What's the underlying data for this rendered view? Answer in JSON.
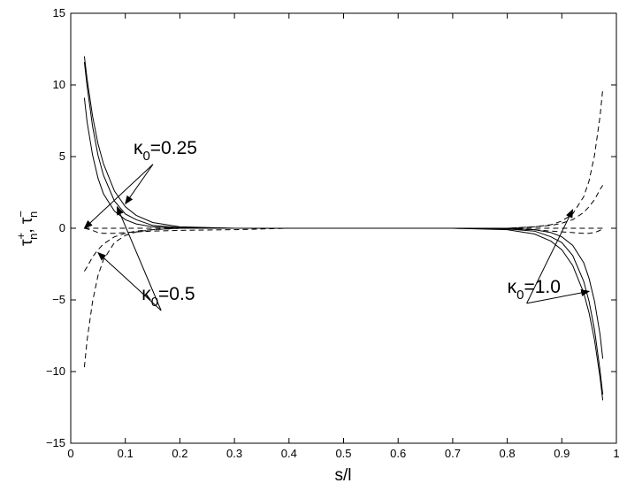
{
  "chart_data": {
    "type": "line",
    "title": "",
    "xlabel": "s/l",
    "ylabel": {
      "base": "τ",
      "parts": [
        {
          "sup": "+",
          "sub": "n"
        },
        {
          "sep": ", "
        },
        {
          "sup": "−",
          "sub": "n"
        }
      ]
    },
    "xlim": [
      0,
      1
    ],
    "ylim": [
      -15,
      15
    ],
    "xticks": [
      "0",
      "0.1",
      "0.2",
      "0.3",
      "0.4",
      "0.5",
      "0.6",
      "0.7",
      "0.8",
      "0.9",
      "1"
    ],
    "yticks": [
      "15",
      "10",
      "5",
      "0",
      "−5",
      "−10",
      "−15"
    ],
    "grid": false,
    "legend": "none",
    "x": [
      0.025,
      0.03,
      0.04,
      0.05,
      0.06,
      0.08,
      0.1,
      0.12,
      0.15,
      0.2,
      0.3,
      0.4,
      0.5,
      0.6,
      0.7,
      0.8,
      0.85,
      0.88,
      0.9,
      0.92,
      0.94,
      0.95,
      0.96,
      0.97,
      0.975
    ],
    "series": [
      {
        "style": "solid",
        "color": "#000000",
        "values": [
          12.0,
          10.4,
          7.8,
          5.9,
          4.5,
          2.6,
          1.5,
          0.9,
          0.4,
          0.1,
          0.0,
          0.0,
          0.0,
          0.0,
          0.0,
          -0.1,
          -0.4,
          -0.9,
          -1.5,
          -2.6,
          -4.5,
          -5.9,
          -7.8,
          -10.4,
          -12.0
        ]
      },
      {
        "style": "solid",
        "color": "#000000",
        "values": [
          11.6,
          9.9,
          7.1,
          5.1,
          3.7,
          1.9,
          1.0,
          0.6,
          0.2,
          0.05,
          0.0,
          0.0,
          0.0,
          0.0,
          0.0,
          -0.05,
          -0.2,
          -0.6,
          -1.0,
          -1.9,
          -3.7,
          -5.1,
          -7.1,
          -9.9,
          -11.6
        ]
      },
      {
        "style": "solid",
        "color": "#000000",
        "values": [
          9.1,
          7.4,
          5.1,
          3.5,
          2.4,
          1.2,
          0.6,
          0.3,
          0.1,
          0.0,
          0.0,
          0.0,
          0.0,
          0.0,
          0.0,
          0.0,
          -0.1,
          -0.3,
          -0.6,
          -1.2,
          -2.4,
          -3.5,
          -5.1,
          -7.4,
          -9.1
        ]
      },
      {
        "style": "dashed",
        "color": "#000000",
        "values": [
          0.0,
          0.0,
          0.0,
          0.0,
          0.0,
          0.0,
          0.0,
          0.0,
          0.0,
          0.0,
          0.0,
          0.0,
          0.0,
          0.0,
          0.0,
          0.0,
          0.0,
          0.0,
          0.0,
          0.0,
          0.0,
          0.0,
          0.0,
          0.0,
          0.0
        ]
      },
      {
        "style": "dashed",
        "color": "#000000",
        "values": [
          -3.0,
          -2.7,
          -2.0,
          -1.5,
          -1.1,
          -0.6,
          -0.35,
          -0.2,
          -0.1,
          0.0,
          0.0,
          0.0,
          0.0,
          0.0,
          0.0,
          0.0,
          0.1,
          0.2,
          0.35,
          0.6,
          1.1,
          1.5,
          2.0,
          2.7,
          3.0
        ]
      },
      {
        "style": "dashed",
        "color": "#000000",
        "values": [
          -9.7,
          -7.8,
          -5.1,
          -3.3,
          -2.2,
          -1.0,
          -0.5,
          -0.25,
          -0.1,
          0.0,
          0.0,
          0.0,
          0.0,
          0.0,
          0.0,
          0.0,
          0.1,
          0.25,
          0.5,
          1.0,
          2.2,
          3.3,
          5.1,
          7.8,
          9.7
        ]
      },
      {
        "style": "dashed",
        "color": "#000000",
        "values": [
          0.0,
          -0.05,
          -0.15,
          -0.3,
          -0.35,
          -0.35,
          -0.3,
          -0.25,
          -0.2,
          -0.15,
          -0.1,
          0.0,
          0.0,
          0.0,
          0.0,
          -0.05,
          -0.1,
          -0.2,
          -0.25,
          -0.3,
          -0.35,
          -0.35,
          -0.3,
          -0.15,
          0.0
        ]
      }
    ],
    "annotations": [
      {
        "base": "κ",
        "sub": "0",
        "text": "=0.25",
        "at": [
          0.115,
          5.2
        ],
        "targets": [
          [
            0.025,
            0.0
          ],
          [
            0.1,
            1.7
          ]
        ]
      },
      {
        "base": "κ",
        "sub": "0",
        "text": "=0.5",
        "at": [
          0.13,
          -5.0
        ],
        "targets": [
          [
            0.05,
            -1.7
          ],
          [
            0.085,
            1.5
          ]
        ]
      },
      {
        "base": "κ",
        "sub": "0",
        "text": "=1.0",
        "at": [
          0.8,
          -4.5
        ],
        "targets": [
          [
            0.92,
            1.3
          ],
          [
            0.95,
            -4.4
          ]
        ]
      }
    ]
  }
}
